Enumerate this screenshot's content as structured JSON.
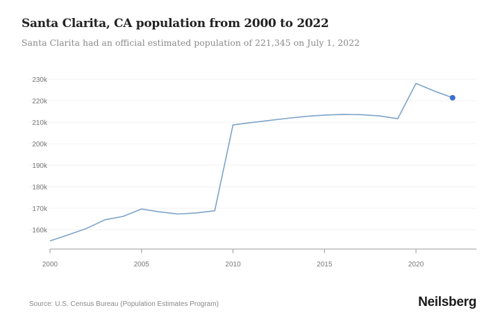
{
  "header": {
    "title": "Santa Clarita, CA population from 2000 to 2022",
    "subtitle": "Santa Clarita had an official estimated population of 221,345 on July 1, 2022"
  },
  "footer": {
    "source": "Source: U.S. Census Bureau (Population Estimates Program)",
    "brand": "Neilsberg"
  },
  "chart_data": {
    "type": "line",
    "title": "Santa Clarita, CA population from 2000 to 2022",
    "xlabel": "",
    "ylabel": "",
    "x": [
      2000,
      2001,
      2002,
      2003,
      2004,
      2005,
      2006,
      2007,
      2008,
      2009,
      2010,
      2011,
      2012,
      2013,
      2014,
      2015,
      2016,
      2017,
      2018,
      2019,
      2020,
      2021,
      2022
    ],
    "series": [
      {
        "values": [
          154800,
          157600,
          160600,
          164600,
          166200,
          169600,
          168300,
          167300,
          167800,
          168800,
          208700,
          209800,
          210800,
          211800,
          212700,
          213300,
          213600,
          213500,
          212900,
          211600,
          228000,
          224500,
          221345
        ],
        "color": "#7ba3c9"
      }
    ],
    "highlight_point": {
      "x": 2022,
      "y": 221345,
      "color": "#3a6fd0"
    },
    "xlim": [
      2000,
      2023.3
    ],
    "ylim": [
      151000,
      231000
    ],
    "x_ticks": [
      2000,
      2005,
      2010,
      2015,
      2020
    ],
    "x_tick_labels": [
      "2000",
      "2005",
      "2010",
      "2015",
      "2020"
    ],
    "y_ticks": [
      160000,
      170000,
      180000,
      190000,
      200000,
      210000,
      220000,
      230000
    ],
    "y_tick_labels": [
      "160k",
      "170k",
      "180k",
      "190k",
      "200k",
      "210k",
      "220k",
      "230k"
    ],
    "grid": true,
    "legend": "none"
  }
}
